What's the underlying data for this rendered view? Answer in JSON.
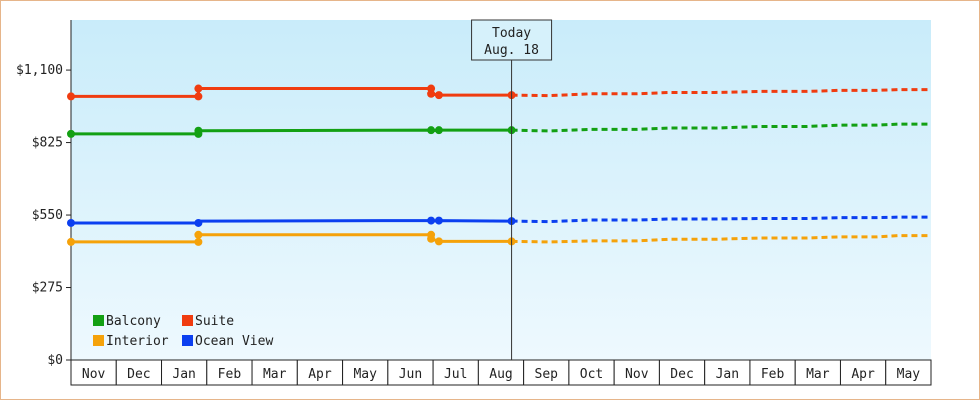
{
  "chart_data": {
    "type": "line",
    "y_ticks": [
      "$0",
      "$275",
      "$550",
      "$825",
      "$1,100"
    ],
    "y_tick_values": [
      0,
      275,
      550,
      825,
      1100
    ],
    "ylim": [
      0,
      1290
    ],
    "month_ticks": [
      "Nov",
      "Dec",
      "Jan",
      "Feb",
      "Mar",
      "Apr",
      "May",
      "Jun",
      "Jul",
      "Aug",
      "Sep",
      "Oct",
      "Nov",
      "Dec",
      "Jan",
      "Feb",
      "Mar",
      "Apr",
      "May"
    ],
    "x_start": 0,
    "x_end": 18.7,
    "today": {
      "line1": "Today",
      "line2": "Aug. 18",
      "x": 9.58
    },
    "grid": false,
    "legend_placement": "bottom-left",
    "series": [
      {
        "name": "Balcony",
        "color": "#13a013",
        "actual": [
          [
            0,
            858
          ],
          [
            2.77,
            858
          ],
          [
            2.77,
            870
          ],
          [
            7.83,
            872
          ],
          [
            7.83,
            870
          ],
          [
            8.0,
            872
          ],
          [
            9.58,
            872
          ]
        ],
        "projected": [
          [
            9.58,
            872
          ],
          [
            10.4,
            869
          ],
          [
            11.3,
            875
          ],
          [
            12.3,
            875
          ],
          [
            13.0,
            880
          ],
          [
            14.0,
            880
          ],
          [
            15.0,
            886
          ],
          [
            16.0,
            886
          ],
          [
            16.7,
            891
          ],
          [
            17.5,
            891
          ],
          [
            18.0,
            895
          ],
          [
            18.7,
            895
          ]
        ]
      },
      {
        "name": "Suite",
        "color": "#f03c10",
        "actual": [
          [
            0,
            1000
          ],
          [
            2.77,
            1000
          ],
          [
            2.77,
            1030
          ],
          [
            7.83,
            1030
          ],
          [
            7.83,
            1010
          ],
          [
            8.0,
            1005
          ],
          [
            9.58,
            1005
          ]
        ],
        "projected": [
          [
            9.58,
            1005
          ],
          [
            10.4,
            1003
          ],
          [
            11.3,
            1010
          ],
          [
            12.3,
            1010
          ],
          [
            13.0,
            1015
          ],
          [
            14.0,
            1015
          ],
          [
            15.0,
            1019
          ],
          [
            16.0,
            1019
          ],
          [
            16.7,
            1023
          ],
          [
            17.5,
            1023
          ],
          [
            18.0,
            1026
          ],
          [
            18.7,
            1026
          ]
        ]
      },
      {
        "name": "Interior",
        "color": "#f5a20a",
        "actual": [
          [
            0,
            448
          ],
          [
            2.77,
            448
          ],
          [
            2.77,
            475
          ],
          [
            7.83,
            475
          ],
          [
            7.83,
            460
          ],
          [
            8.0,
            450
          ],
          [
            9.58,
            450
          ]
        ],
        "projected": [
          [
            9.58,
            450
          ],
          [
            10.4,
            448
          ],
          [
            11.3,
            452
          ],
          [
            12.3,
            452
          ],
          [
            13.0,
            458
          ],
          [
            14.0,
            458
          ],
          [
            15.0,
            463
          ],
          [
            16.0,
            463
          ],
          [
            16.7,
            467
          ],
          [
            17.5,
            467
          ],
          [
            18.0,
            472
          ],
          [
            18.7,
            472
          ]
        ]
      },
      {
        "name": "Ocean View",
        "color": "#0b3ff0",
        "actual": [
          [
            0,
            520
          ],
          [
            2.77,
            520
          ],
          [
            2.77,
            527
          ],
          [
            7.83,
            529
          ],
          [
            7.83,
            527
          ],
          [
            8.0,
            529
          ],
          [
            9.58,
            527
          ]
        ],
        "projected": [
          [
            9.58,
            527
          ],
          [
            10.4,
            525
          ],
          [
            11.3,
            531
          ],
          [
            12.3,
            531
          ],
          [
            13.0,
            535
          ],
          [
            14.0,
            535
          ],
          [
            15.0,
            537
          ],
          [
            16.0,
            537
          ],
          [
            16.7,
            540
          ],
          [
            17.5,
            540
          ],
          [
            18.0,
            542
          ],
          [
            18.7,
            542
          ]
        ]
      }
    ],
    "markers": {
      "Balcony": [
        [
          0,
          858
        ],
        [
          2.77,
          858
        ],
        [
          2.77,
          870
        ],
        [
          7.83,
          872
        ],
        [
          8.0,
          872
        ],
        [
          9.58,
          872
        ]
      ],
      "Suite": [
        [
          0,
          1000
        ],
        [
          2.77,
          1000
        ],
        [
          2.77,
          1030
        ],
        [
          7.83,
          1030
        ],
        [
          7.83,
          1010
        ],
        [
          8.0,
          1005
        ],
        [
          9.58,
          1005
        ]
      ],
      "Interior": [
        [
          0,
          448
        ],
        [
          2.77,
          448
        ],
        [
          2.77,
          475
        ],
        [
          7.83,
          475
        ],
        [
          7.83,
          460
        ],
        [
          8.0,
          450
        ],
        [
          9.58,
          450
        ]
      ],
      "Ocean View": [
        [
          0,
          520
        ],
        [
          2.77,
          520
        ],
        [
          7.83,
          529
        ],
        [
          8.0,
          529
        ],
        [
          9.58,
          527
        ]
      ]
    }
  }
}
